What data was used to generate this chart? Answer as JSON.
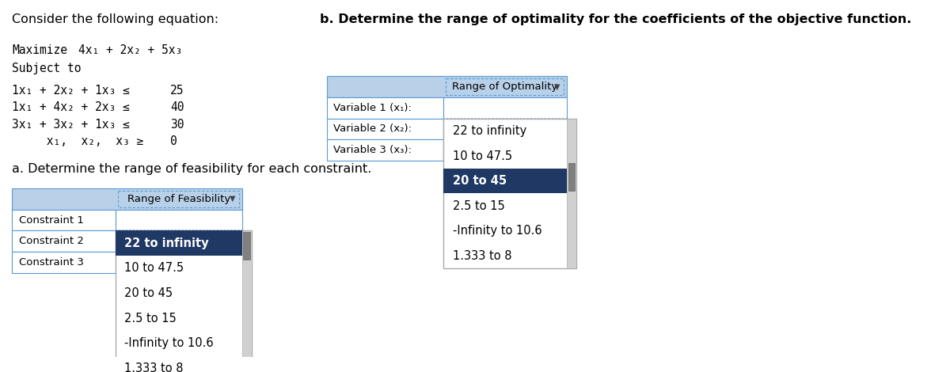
{
  "title_text": "Consider the following equation:",
  "maximize_label": "Maximize",
  "objective": "4x₁ + 2x₂ + 5x₃",
  "subject_to": "Subject to",
  "constraints_left": [
    "1x₁ + 2x₂ + 1x₃ ≤",
    "1x₁ + 4x₂ + 2x₃ ≤",
    "3x₁ + 3x₂ + 1x₃ ≤",
    "     x₁,  x₂,  x₃ ≥"
  ],
  "constraints_right": [
    "25",
    "40",
    "30",
    "0"
  ],
  "part_a_label": "a. Determine the range of feasibility for each constraint.",
  "part_b_label": "b. Determine the range of optimality for the coefficients of the objective function.",
  "table_a_header": "Range of Feasibility",
  "table_a_rows": [
    "Constraint 1",
    "Constraint 2",
    "Constraint 3"
  ],
  "table_b_header": "Range of Optimality",
  "table_b_rows": [
    "Variable 1 (x₁):",
    "Variable 2 (x₂):",
    "Variable 3 (x₃):"
  ],
  "dropdown_items": [
    "22 to infinity",
    "10 to 47.5",
    "20 to 45",
    "2.5 to 15",
    "-Infinity to 10.6",
    "1.333 to 8"
  ],
  "dropdown_a_highlighted": "22 to infinity",
  "dropdown_b_highlighted": "20 to 45",
  "header_bg": "#b8d0e8",
  "row_bg": "#ffffff",
  "selected_bg": "#1f3864",
  "selected_fg": "#ffffff",
  "dropdown_bg": "#ffffff",
  "dropdown_border": "#888888",
  "table_border": "#5b9bd5",
  "scrollbar_bg": "#d0d0d0",
  "scrollbar_thumb": "#808080"
}
